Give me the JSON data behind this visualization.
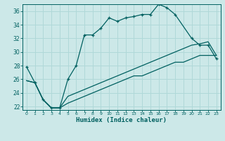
{
  "xlabel": "Humidex (Indice chaleur)",
  "bg_color": "#cce8e8",
  "line_color": "#006060",
  "grid_color": "#b0d8d8",
  "xlim": [
    -0.5,
    23.5
  ],
  "ylim": [
    21.5,
    37.0
  ],
  "xticks": [
    0,
    1,
    2,
    3,
    4,
    5,
    6,
    7,
    8,
    9,
    10,
    11,
    12,
    13,
    14,
    15,
    16,
    17,
    18,
    19,
    20,
    21,
    22,
    23
  ],
  "yticks": [
    22,
    24,
    26,
    28,
    30,
    32,
    34,
    36
  ],
  "line1_x": [
    0,
    1,
    2,
    3,
    4,
    5,
    6,
    7,
    8,
    9,
    10,
    11,
    12,
    13,
    14,
    15,
    16,
    17,
    18,
    20,
    21,
    22,
    23
  ],
  "line1_y": [
    27.8,
    25.5,
    23.0,
    21.8,
    21.8,
    26.0,
    28.0,
    32.5,
    32.5,
    33.5,
    35.0,
    34.5,
    35.0,
    35.2,
    35.5,
    35.5,
    37.0,
    36.5,
    35.5,
    32.0,
    31.0,
    31.0,
    29.0
  ],
  "line2_x": [
    0,
    1,
    2,
    3,
    4,
    5,
    6,
    7,
    8,
    9,
    10,
    11,
    12,
    13,
    14,
    15,
    16,
    17,
    18,
    19,
    20,
    21,
    22,
    23
  ],
  "line2_y": [
    25.8,
    25.5,
    23.0,
    21.8,
    21.8,
    23.5,
    24.0,
    24.5,
    25.0,
    25.5,
    26.0,
    26.5,
    27.0,
    27.5,
    28.0,
    28.5,
    29.0,
    29.5,
    30.0,
    30.5,
    31.0,
    31.2,
    31.5,
    29.5
  ],
  "line3_x": [
    0,
    1,
    2,
    3,
    4,
    5,
    6,
    7,
    8,
    9,
    10,
    11,
    12,
    13,
    14,
    15,
    16,
    17,
    18,
    19,
    20,
    21,
    22,
    23
  ],
  "line3_y": [
    25.8,
    25.5,
    23.0,
    21.8,
    21.8,
    22.5,
    23.0,
    23.5,
    24.0,
    24.5,
    25.0,
    25.5,
    26.0,
    26.5,
    26.5,
    27.0,
    27.5,
    28.0,
    28.5,
    28.5,
    29.0,
    29.5,
    29.5,
    29.5
  ]
}
